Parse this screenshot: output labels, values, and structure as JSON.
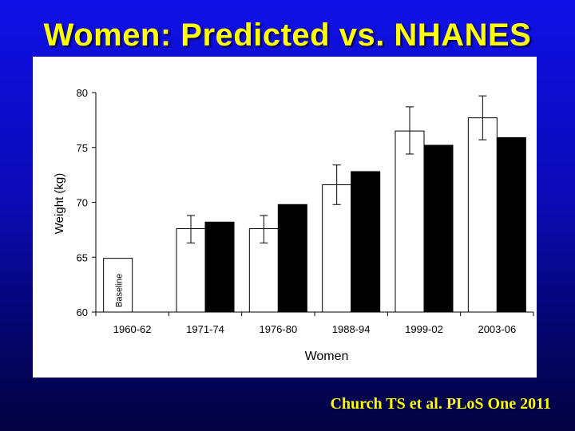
{
  "title": "Women: Predicted vs. NHANES",
  "citation": "Church TS et al. PLoS One 2011",
  "chart_data": {
    "type": "bar",
    "xlabel": "Women",
    "ylabel": "Weight (kg)",
    "ylim": [
      60,
      80
    ],
    "yticks": [
      60,
      65,
      70,
      75,
      80
    ],
    "categories": [
      "1960-62",
      "1971-74",
      "1976-80",
      "1988-94",
      "1999-02",
      "2003-06"
    ],
    "series": [
      {
        "color": "#ffffff",
        "values": [
          64.9,
          67.6,
          67.6,
          71.6,
          76.5,
          77.7
        ],
        "error_low": [
          null,
          66.3,
          66.3,
          69.8,
          74.4,
          75.7
        ],
        "error_high": [
          null,
          68.8,
          68.8,
          73.4,
          78.7,
          79.7
        ]
      },
      {
        "color": "#000000",
        "values": [
          null,
          68.2,
          69.8,
          72.8,
          75.2,
          75.9
        ]
      }
    ],
    "annotations": [
      {
        "text": "Baseline",
        "category": "1960-62"
      }
    ],
    "grid": false,
    "legend": "none"
  }
}
